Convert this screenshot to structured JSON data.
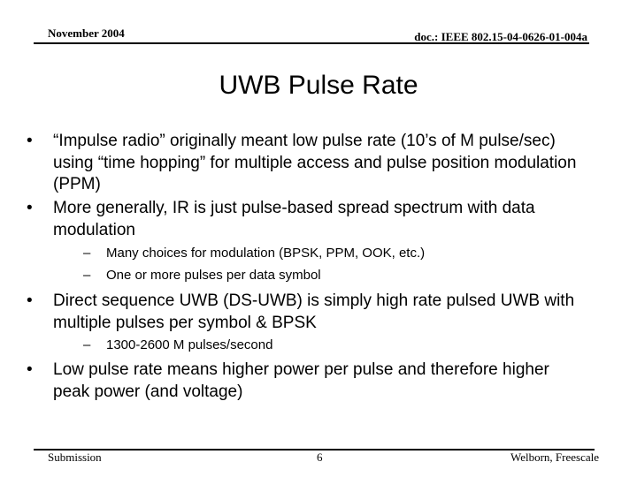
{
  "header": {
    "date": "November 2004",
    "doc": "doc.: IEEE 802.15-04-0626-01-004a"
  },
  "title": "UWB Pulse Rate",
  "bullets": [
    {
      "text": "“Impulse radio” originally meant low pulse rate (10’s of M pulse/sec) using “time hopping” for multiple access and pulse position modulation (PPM)"
    },
    {
      "text": "More generally, IR is just pulse-based spread spectrum with data modulation",
      "subs": [
        "Many choices for modulation (BPSK, PPM, OOK, etc.)",
        "One or more pulses per data symbol"
      ]
    },
    {
      "text": "Direct sequence UWB (DS-UWB) is simply high rate pulsed UWB with multiple pulses per symbol & BPSK",
      "subs": [
        "1300-2600 M pulses/second"
      ]
    },
    {
      "text": "Low pulse rate means higher power per pulse and therefore higher peak power (and voltage)"
    }
  ],
  "markers": {
    "bullet": "•",
    "sub": "–"
  },
  "footer": {
    "left": "Submission",
    "page": "6",
    "right": "Welborn, Freescale"
  }
}
